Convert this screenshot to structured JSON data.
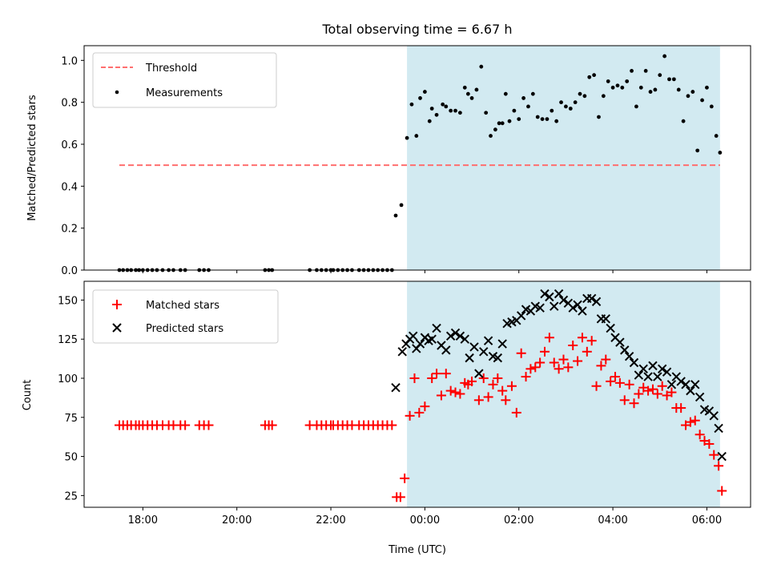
{
  "chart_data": {
    "title": "Total observing time = 6.67 h",
    "xlabel": "Time (UTC)",
    "x_ticks": [
      "18:00",
      "20:00",
      "22:00",
      "00:00",
      "02:00",
      "04:00",
      "06:00"
    ],
    "x_unit": "hours since 17:00 UTC of night",
    "xlim": [
      16.75,
      30.93
    ],
    "shaded_interval": [
      23.62,
      30.28
    ],
    "colors": {
      "shade": "#add8e6",
      "threshold": "#ff6f6f",
      "matched": "#ff0000",
      "predicted": "#000000",
      "measurements": "#000000"
    },
    "panels": [
      {
        "type": "scatter",
        "ylabel": "Matched/Predicted stars",
        "ylim": [
          0.0,
          1.07
        ],
        "y_ticks": [
          0.0,
          0.2,
          0.4,
          0.6,
          0.8,
          1.0
        ],
        "y_tick_labels": [
          "0.0",
          "0.2",
          "0.4",
          "0.6",
          "0.8",
          "1.0"
        ],
        "legend": {
          "placement": "top-left",
          "entries": [
            "Threshold",
            "Measurements"
          ]
        },
        "threshold": {
          "name": "Threshold",
          "value": 0.5,
          "x_range": [
            17.5,
            30.28
          ]
        },
        "series": [
          {
            "name": "Measurements",
            "x": [
              17.5,
              17.58,
              17.67,
              17.75,
              17.85,
              17.92,
              18.0,
              18.1,
              18.2,
              18.3,
              18.42,
              18.55,
              18.65,
              18.8,
              18.9,
              19.2,
              19.3,
              19.4,
              20.6,
              20.68,
              20.75,
              21.55,
              21.7,
              21.8,
              21.9,
              22.0,
              22.05,
              22.15,
              22.25,
              22.35,
              22.45,
              22.6,
              22.7,
              22.8,
              22.9,
              23.0,
              23.1,
              23.2,
              23.3,
              23.38,
              23.5,
              23.62,
              23.72,
              23.82,
              23.9,
              24.0,
              24.1,
              24.15,
              24.25,
              24.38,
              24.45,
              24.55,
              24.65,
              24.75,
              24.85,
              24.92,
              25.0,
              25.1,
              25.2,
              25.3,
              25.4,
              25.5,
              25.58,
              25.65,
              25.72,
              25.8,
              25.9,
              26.0,
              26.1,
              26.2,
              26.3,
              26.4,
              26.5,
              26.6,
              26.7,
              26.8,
              26.9,
              27.0,
              27.1,
              27.2,
              27.3,
              27.4,
              27.5,
              27.6,
              27.7,
              27.8,
              27.9,
              28.0,
              28.1,
              28.2,
              28.3,
              28.4,
              28.5,
              28.6,
              28.7,
              28.8,
              28.9,
              29.0,
              29.1,
              29.2,
              29.3,
              29.4,
              29.5,
              29.6,
              29.7,
              29.8,
              29.9,
              30.0,
              30.1,
              30.2,
              30.28
            ],
            "y": [
              0,
              0,
              0,
              0,
              0,
              0,
              0,
              0,
              0,
              0,
              0,
              0,
              0,
              0,
              0,
              0,
              0,
              0,
              0,
              0,
              0,
              0,
              0,
              0,
              0,
              0,
              0,
              0,
              0,
              0,
              0,
              0,
              0,
              0,
              0,
              0,
              0,
              0,
              0,
              0.26,
              0.31,
              0.63,
              0.79,
              0.64,
              0.82,
              0.85,
              0.71,
              0.77,
              0.74,
              0.79,
              0.78,
              0.76,
              0.76,
              0.75,
              0.87,
              0.84,
              0.82,
              0.86,
              0.97,
              0.75,
              0.64,
              0.67,
              0.7,
              0.7,
              0.84,
              0.71,
              0.76,
              0.72,
              0.82,
              0.78,
              0.84,
              0.73,
              0.72,
              0.72,
              0.76,
              0.71,
              0.8,
              0.78,
              0.77,
              0.8,
              0.84,
              0.83,
              0.92,
              0.93,
              0.73,
              0.83,
              0.9,
              0.87,
              0.88,
              0.87,
              0.9,
              0.95,
              0.78,
              0.87,
              0.95,
              0.85,
              0.86,
              0.93,
              1.02,
              0.91,
              0.91,
              0.86,
              0.71,
              0.83,
              0.85,
              0.57,
              0.81,
              0.87,
              0.78,
              0.64,
              0.56
            ]
          }
        ]
      },
      {
        "type": "scatter",
        "ylabel": "Count",
        "ylim": [
          17.5,
          162
        ],
        "y_ticks": [
          25,
          50,
          75,
          100,
          125,
          150
        ],
        "y_tick_labels": [
          "25",
          "50",
          "75",
          "100",
          "125",
          "150"
        ],
        "legend": {
          "placement": "top-left",
          "entries": [
            "Matched stars",
            "Predicted stars"
          ]
        },
        "series": [
          {
            "name": "Matched stars",
            "marker": "plus",
            "x": [
              17.5,
              17.58,
              17.67,
              17.75,
              17.85,
              17.92,
              18.0,
              18.1,
              18.2,
              18.3,
              18.42,
              18.55,
              18.65,
              18.8,
              18.9,
              19.2,
              19.3,
              19.4,
              20.6,
              20.68,
              20.75,
              21.55,
              21.7,
              21.8,
              21.9,
              22.0,
              22.05,
              22.15,
              22.25,
              22.35,
              22.45,
              22.6,
              22.7,
              22.8,
              22.9,
              23.0,
              23.1,
              23.2,
              23.3,
              23.4,
              23.48,
              23.57,
              23.68,
              23.78,
              23.88,
              24.0,
              24.15,
              24.25,
              24.35,
              24.45,
              24.55,
              24.65,
              24.75,
              24.85,
              24.92,
              25.0,
              25.15,
              25.25,
              25.35,
              25.45,
              25.55,
              25.65,
              25.72,
              25.85,
              25.95,
              26.05,
              26.15,
              26.25,
              26.35,
              26.45,
              26.55,
              26.65,
              26.75,
              26.85,
              26.95,
              27.05,
              27.15,
              27.25,
              27.35,
              27.45,
              27.55,
              27.65,
              27.75,
              27.85,
              27.95,
              28.05,
              28.15,
              28.25,
              28.35,
              28.45,
              28.55,
              28.65,
              28.75,
              28.85,
              28.95,
              29.05,
              29.15,
              29.25,
              29.35,
              29.45,
              29.55,
              29.65,
              29.75,
              29.85,
              29.95,
              30.05,
              30.15,
              30.25,
              30.32
            ],
            "y": [
              70,
              70,
              70,
              70,
              70,
              70,
              70,
              70,
              70,
              70,
              70,
              70,
              70,
              70,
              70,
              70,
              70,
              70,
              70,
              70,
              70,
              70,
              70,
              70,
              70,
              70,
              70,
              70,
              70,
              70,
              70,
              70,
              70,
              70,
              70,
              70,
              70,
              70,
              70,
              24,
              24,
              36,
              76,
              100,
              78,
              82,
              100,
              103,
              89,
              103,
              92,
              91,
              90,
              97,
              96,
              98,
              86,
              100,
              88,
              96,
              100,
              92,
              86,
              95,
              78,
              116,
              101,
              106,
              107,
              110,
              117,
              126,
              110,
              106,
              112,
              107,
              121,
              111,
              126,
              117,
              124,
              95,
              108,
              112,
              98,
              101,
              97,
              86,
              96,
              84,
              90,
              94,
              92,
              93,
              90,
              95,
              89,
              91,
              81,
              81,
              70,
              72,
              73,
              64,
              60,
              58,
              51,
              44,
              28
            ]
          },
          {
            "name": "Predicted stars",
            "marker": "x",
            "x": [
              23.38,
              23.52,
              23.6,
              23.68,
              23.75,
              23.82,
              23.9,
              24.0,
              24.08,
              24.15,
              24.25,
              24.35,
              24.45,
              24.55,
              24.65,
              24.75,
              24.85,
              24.95,
              25.05,
              25.15,
              25.25,
              25.35,
              25.45,
              25.55,
              25.65,
              25.75,
              25.85,
              25.95,
              26.05,
              26.15,
              26.25,
              26.35,
              26.45,
              26.55,
              26.65,
              26.75,
              26.85,
              26.95,
              27.05,
              27.15,
              27.25,
              27.35,
              27.45,
              27.55,
              27.65,
              27.75,
              27.85,
              27.95,
              28.05,
              28.15,
              28.25,
              28.35,
              28.45,
              28.55,
              28.65,
              28.75,
              28.85,
              28.95,
              29.05,
              29.15,
              29.25,
              29.35,
              29.45,
              29.55,
              29.65,
              29.75,
              29.85,
              29.95,
              30.05,
              30.15,
              30.25,
              30.32
            ],
            "y": [
              94,
              117,
              122,
              125,
              127,
              119,
              122,
              126,
              124,
              125,
              132,
              121,
              118,
              127,
              129,
              127,
              125,
              113,
              120,
              103,
              117,
              124,
              114,
              113,
              122,
              135,
              136,
              137,
              140,
              144,
              143,
              146,
              145,
              154,
              152,
              146,
              154,
              150,
              148,
              145,
              147,
              143,
              151,
              151,
              149,
              138,
              138,
              132,
              126,
              123,
              118,
              114,
              110,
              102,
              106,
              101,
              108,
              101,
              106,
              104,
              96,
              101,
              98,
              96,
              92,
              96,
              88,
              80,
              79,
              76,
              68,
              50
            ]
          }
        ]
      }
    ]
  }
}
